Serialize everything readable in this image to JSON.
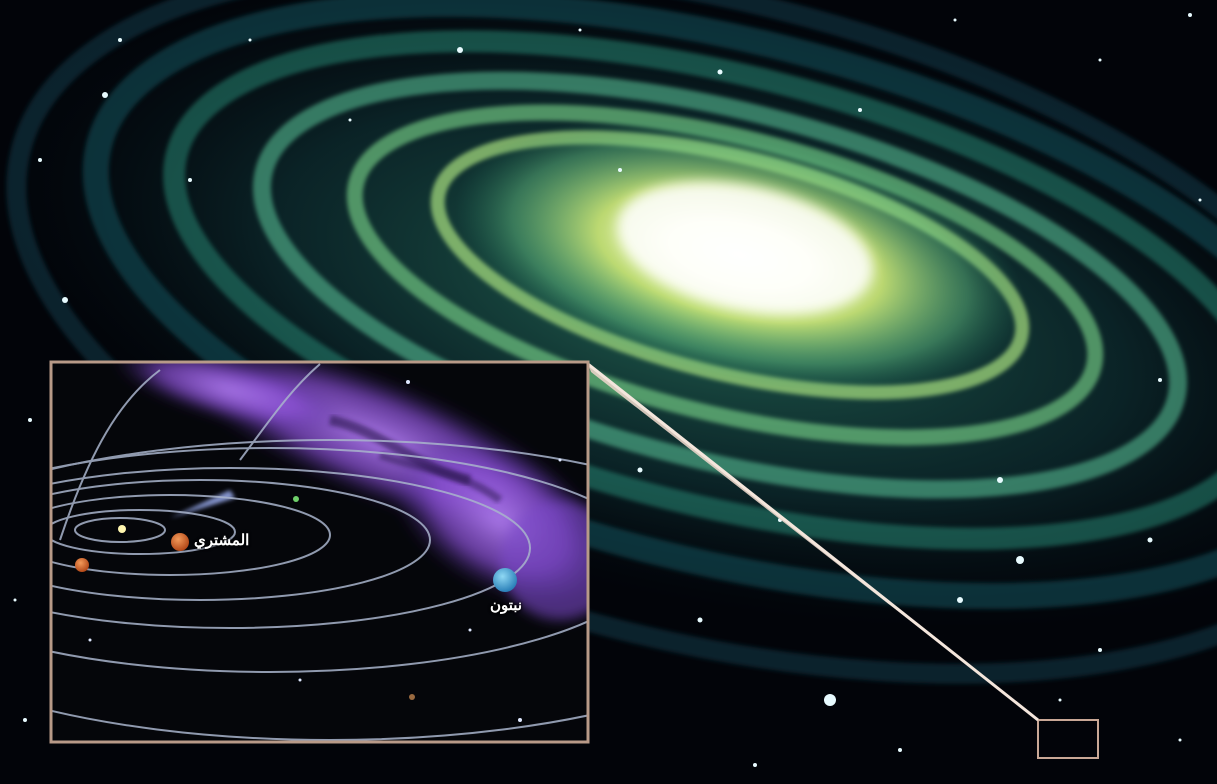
{
  "inset": {
    "labels": {
      "jupiter": "المشتري",
      "neptune": "نبتون"
    }
  },
  "colors": {
    "space": "#020409",
    "galaxy_core": "#fffde8",
    "galaxy_arm": "#5fd09a",
    "nebula": "#8a4fd6",
    "inset_border": "#b89a88",
    "orbit": "#a9b4cc",
    "jupiter": "#d96a2e",
    "neptune": "#3aa7d8"
  }
}
